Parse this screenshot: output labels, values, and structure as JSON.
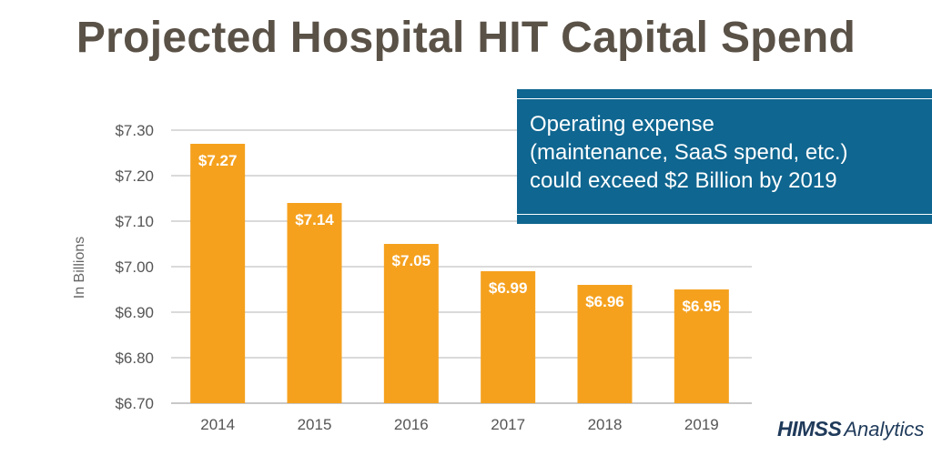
{
  "chart_data": {
    "type": "bar",
    "title": "Projected Hospital HIT Capital Spend",
    "ylabel": "In Billions",
    "xlabel": "",
    "categories": [
      "2014",
      "2015",
      "2016",
      "2017",
      "2018",
      "2019"
    ],
    "values": [
      7.27,
      7.14,
      7.05,
      6.99,
      6.96,
      6.95
    ],
    "data_labels": [
      "$7.27",
      "$7.14",
      "$7.05",
      "$6.99",
      "$6.96",
      "$6.95"
    ],
    "ylim": [
      6.7,
      7.3
    ],
    "yticks": [
      6.7,
      6.8,
      6.9,
      7.0,
      7.1,
      7.2,
      7.3
    ],
    "ytick_labels": [
      "$6.70",
      "$6.80",
      "$6.90",
      "$7.00",
      "$7.10",
      "$7.20",
      "$7.30"
    ],
    "grid": true,
    "bar_color": "#f5a11e",
    "grid_color": "#b5b5b5",
    "annotation": {
      "lines": [
        "Operating expense",
        "(maintenance, SaaS spend, etc.)",
        "could exceed $2 Billion by 2019"
      ],
      "background": "#0f6690"
    }
  },
  "logo": {
    "brand": "HIMSS",
    "product": "Analytics"
  }
}
